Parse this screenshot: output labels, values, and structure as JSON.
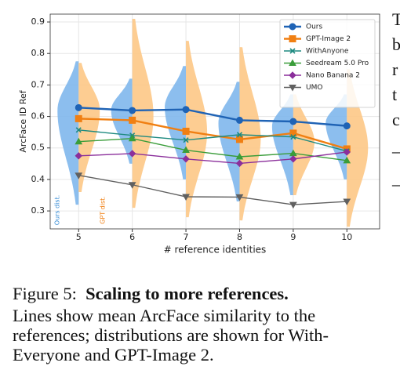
{
  "chart_data": {
    "type": "line",
    "y_label": "ArcFace ID Ref",
    "x_label": "# reference identities",
    "x": [
      5,
      6,
      7,
      8,
      9,
      10
    ],
    "xlim": [
      4.47,
      10.61
    ],
    "xticks": [
      5,
      6,
      7,
      8,
      9,
      10
    ],
    "ylim": [
      0.243,
      0.925
    ],
    "yticks": [
      0.3,
      0.4,
      0.5,
      0.6,
      0.7,
      0.8,
      0.9
    ],
    "grid": true,
    "legend": "upper right",
    "series": [
      {
        "name": "Ours",
        "color": "#1f63b5",
        "marker": "circle",
        "values": [
          0.628,
          0.619,
          0.622,
          0.588,
          0.584,
          0.57
        ]
      },
      {
        "name": "GPT-Image 2",
        "color": "#f07f12",
        "marker": "square",
        "values": [
          0.593,
          0.588,
          0.553,
          0.527,
          0.547,
          0.497
        ]
      },
      {
        "name": "WithAnyone",
        "color": "#1e8a80",
        "marker": "x",
        "values": [
          0.557,
          0.54,
          0.525,
          0.542,
          0.535,
          0.49
        ]
      },
      {
        "name": "Seedream 5.0 Pro",
        "color": "#3a9d3a",
        "marker": "triangle",
        "values": [
          0.52,
          0.53,
          0.493,
          0.472,
          0.483,
          0.46
        ]
      },
      {
        "name": "Nano Banana 2",
        "color": "#8b2f9b",
        "marker": "diamond",
        "values": [
          0.475,
          0.482,
          0.465,
          0.451,
          0.465,
          0.487
        ]
      },
      {
        "name": "UMO",
        "color": "#606060",
        "marker": "triangle-down",
        "values": [
          0.413,
          0.383,
          0.345,
          0.344,
          0.32,
          0.33
        ]
      }
    ],
    "distributions": [
      {
        "name": "Ours dist.",
        "color": "#7fb7ec",
        "side": "left",
        "values": [
          {
            "lo": 0.32,
            "peak": 0.62,
            "hi": 0.775
          },
          {
            "lo": 0.45,
            "peak": 0.62,
            "hi": 0.72
          },
          {
            "lo": 0.4,
            "peak": 0.63,
            "hi": 0.76
          },
          {
            "lo": 0.33,
            "peak": 0.58,
            "hi": 0.71
          },
          {
            "lo": 0.35,
            "peak": 0.57,
            "hi": 0.67
          },
          {
            "lo": 0.4,
            "peak": 0.58,
            "hi": 0.67
          }
        ]
      },
      {
        "name": "GPT dist.",
        "color": "#fdc886",
        "side": "right",
        "values": [
          {
            "lo": 0.36,
            "peak": 0.62,
            "hi": 0.77
          },
          {
            "lo": 0.31,
            "peak": 0.6,
            "hi": 0.91
          },
          {
            "lo": 0.28,
            "peak": 0.55,
            "hi": 0.84
          },
          {
            "lo": 0.27,
            "peak": 0.53,
            "hi": 0.82
          },
          {
            "lo": 0.35,
            "peak": 0.52,
            "hi": 0.67
          },
          {
            "lo": 0.25,
            "peak": 0.5,
            "hi": 0.75
          }
        ]
      }
    ]
  },
  "caption": {
    "label": "Figure 5:",
    "title": "Scaling to more references.",
    "lines": [
      "Lines show mean ArcFace similarity to the",
      "references; distributions are shown for With-",
      "Everyone and GPT-Image 2."
    ]
  },
  "side_fragments": [
    "T",
    "b",
    "r",
    "t",
    "c",
    "–",
    "–"
  ]
}
